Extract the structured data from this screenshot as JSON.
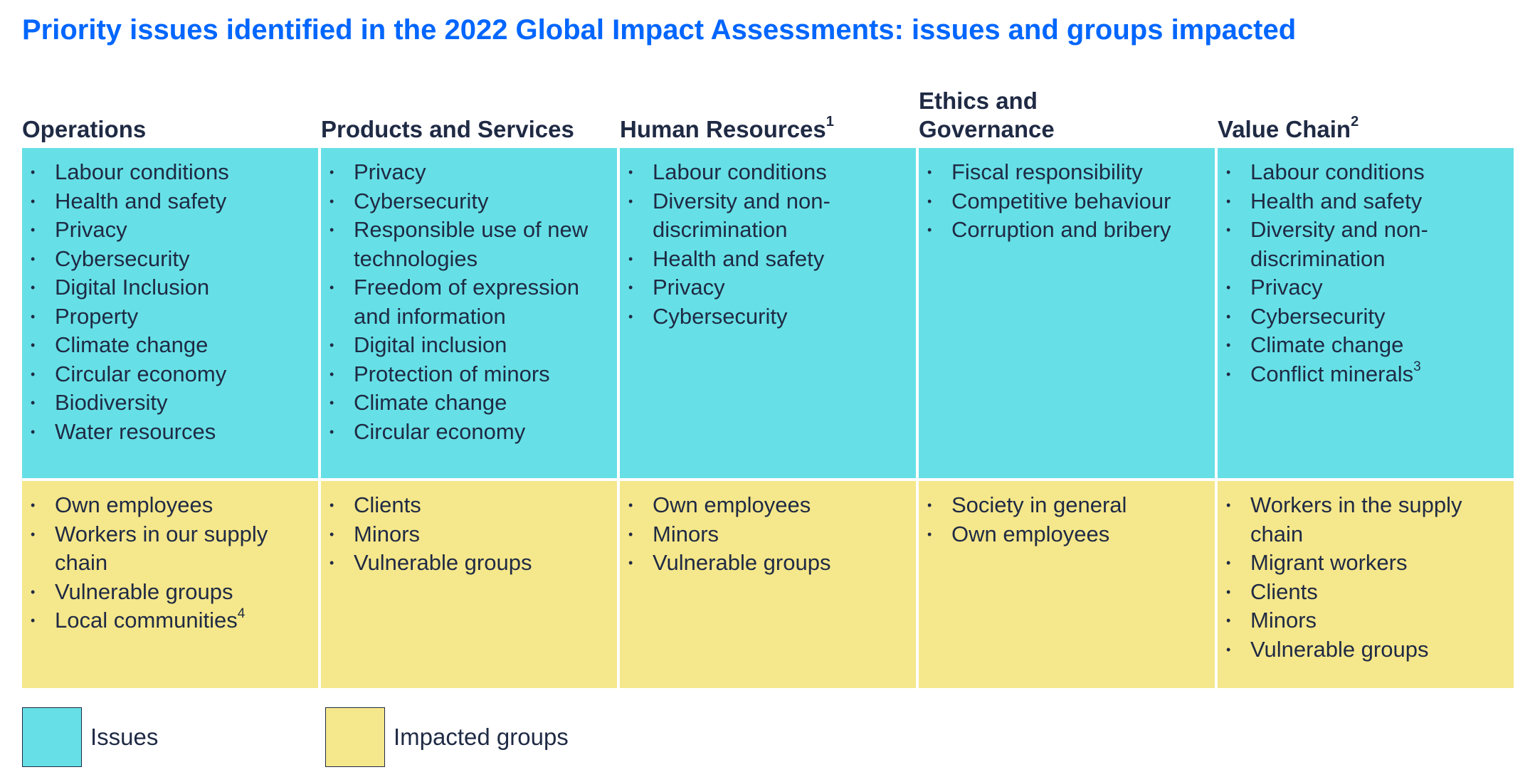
{
  "title": "Priority issues identified in the 2022 Global Impact Assessments: issues and groups impacted",
  "columns": [
    {
      "header": "Operations",
      "header_sup": "",
      "header_line2": "",
      "issues": [
        {
          "text": "Labour conditions",
          "sup": ""
        },
        {
          "text": "Health and safety",
          "sup": ""
        },
        {
          "text": "Privacy",
          "sup": ""
        },
        {
          "text": "Cybersecurity",
          "sup": ""
        },
        {
          "text": "Digital Inclusion",
          "sup": ""
        },
        {
          "text": "Property",
          "sup": ""
        },
        {
          "text": "Climate change",
          "sup": ""
        },
        {
          "text": "Circular economy",
          "sup": ""
        },
        {
          "text": "Biodiversity",
          "sup": ""
        },
        {
          "text": "Water resources",
          "sup": ""
        }
      ],
      "groups": [
        {
          "text": "Own employees",
          "sup": ""
        },
        {
          "text": "Workers in our supply chain",
          "sup": ""
        },
        {
          "text": "Vulnerable groups",
          "sup": ""
        },
        {
          "text": "Local communities",
          "sup": "4"
        }
      ]
    },
    {
      "header": "Products and Services",
      "header_sup": "",
      "header_line2": "",
      "issues": [
        {
          "text": "Privacy",
          "sup": ""
        },
        {
          "text": "Cybersecurity",
          "sup": ""
        },
        {
          "text": "Responsible use of new technologies",
          "sup": ""
        },
        {
          "text": "Freedom of expression and information",
          "sup": ""
        },
        {
          "text": "Digital inclusion",
          "sup": ""
        },
        {
          "text": "Protection of minors",
          "sup": ""
        },
        {
          "text": "Climate change",
          "sup": ""
        },
        {
          "text": "Circular economy",
          "sup": ""
        }
      ],
      "groups": [
        {
          "text": "Clients",
          "sup": ""
        },
        {
          "text": "Minors",
          "sup": ""
        },
        {
          "text": "Vulnerable groups",
          "sup": ""
        }
      ]
    },
    {
      "header": "Human Resources",
      "header_sup": "1",
      "header_line2": "",
      "issues": [
        {
          "text": "Labour conditions",
          "sup": ""
        },
        {
          "text": "Diversity and non-discrimination",
          "sup": ""
        },
        {
          "text": "Health and safety",
          "sup": ""
        },
        {
          "text": "Privacy",
          "sup": ""
        },
        {
          "text": "Cybersecurity",
          "sup": ""
        }
      ],
      "groups": [
        {
          "text": "Own employees",
          "sup": ""
        },
        {
          "text": "Minors",
          "sup": ""
        },
        {
          "text": "Vulnerable groups",
          "sup": ""
        }
      ]
    },
    {
      "header": "Ethics and",
      "header_sup": "",
      "header_line2": "Governance",
      "issues": [
        {
          "text": "Fiscal responsibility",
          "sup": ""
        },
        {
          "text": "Competitive behaviour",
          "sup": ""
        },
        {
          "text": "Corruption and bribery",
          "sup": ""
        }
      ],
      "groups": [
        {
          "text": "Society in general",
          "sup": ""
        },
        {
          "text": "Own employees",
          "sup": ""
        }
      ]
    },
    {
      "header": "Value Chain",
      "header_sup": "2",
      "header_line2": "",
      "issues": [
        {
          "text": "Labour conditions",
          "sup": ""
        },
        {
          "text": "Health and safety",
          "sup": ""
        },
        {
          "text": "Diversity and non-discrimination",
          "sup": ""
        },
        {
          "text": "Privacy",
          "sup": ""
        },
        {
          "text": "Cybersecurity",
          "sup": ""
        },
        {
          "text": "Climate change",
          "sup": ""
        },
        {
          "text": "Conflict minerals",
          "sup": "3"
        }
      ],
      "groups": [
        {
          "text": "Workers in the supply chain",
          "sup": ""
        },
        {
          "text": "Migrant workers",
          "sup": ""
        },
        {
          "text": "Clients",
          "sup": ""
        },
        {
          "text": "Minors",
          "sup": ""
        },
        {
          "text": "Vulnerable groups",
          "sup": ""
        }
      ]
    }
  ],
  "legend": {
    "issues_label": "Issues",
    "groups_label": "Impacted groups"
  },
  "colors": {
    "title": "#0066ff",
    "issues_fill": "#66e0e6",
    "groups_fill": "#f5e78b",
    "text": "#1f2a44"
  }
}
